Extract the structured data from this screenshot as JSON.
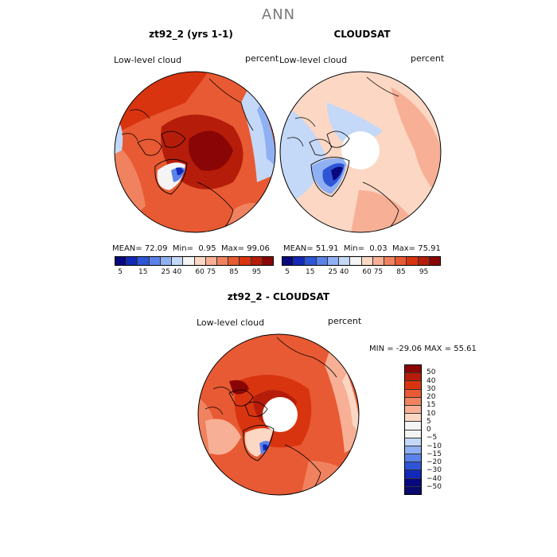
{
  "page": {
    "title": "ANN"
  },
  "panel1": {
    "title": "zt92_2 (yrs 1-1)",
    "field_label": "Low-level cloud",
    "units": "percent",
    "stats": {
      "mean_label": "MEAN=",
      "mean": "72.09",
      "min_label": "Min=",
      "min": "0.95",
      "max_label": "Max=",
      "max": "99.06"
    }
  },
  "panel2": {
    "title": "CLOUDSAT",
    "field_label": "Low-level cloud",
    "units": "percent",
    "stats": {
      "mean_label": "MEAN=",
      "mean": "51.91",
      "min_label": "Min=",
      "min": "0.03",
      "max_label": "Max=",
      "max": "75.91"
    }
  },
  "panel3": {
    "title": "zt92_2 - CLOUDSAT",
    "field_label": "Low-level cloud",
    "units": "percent",
    "minmax": "MIN = -29.06 MAX =  55.61"
  },
  "colors": {
    "abs_scale": [
      "#08087e",
      "#1228b8",
      "#2d55d6",
      "#5b82e8",
      "#8fb0f2",
      "#c4d8f8",
      "#f4f4f4",
      "#fbd7c4",
      "#f7b095",
      "#f0825f",
      "#e85a33",
      "#d93410",
      "#b51d0a",
      "#8a0505"
    ],
    "diff_scale": [
      "#8a0505",
      "#b51d0a",
      "#d93410",
      "#e85a33",
      "#f0825f",
      "#f7b095",
      "#fbd7c4",
      "#f4f4f4",
      "#f4f4f4",
      "#c4d8f8",
      "#8fb0f2",
      "#5b82e8",
      "#2d55d6",
      "#1228b8",
      "#08087e"
    ]
  },
  "chart_data": [
    {
      "type": "heatmap",
      "title": "zt92_2 (yrs 1-1)",
      "variable": "Low-level cloud",
      "units": "percent",
      "mean": 72.09,
      "min": 0.95,
      "max": 99.06,
      "colorbar_ticks": [
        "5",
        "15",
        "25",
        "40",
        "60",
        "75",
        "85",
        "95"
      ]
    },
    {
      "type": "heatmap",
      "title": "CLOUDSAT",
      "variable": "Low-level cloud",
      "units": "percent",
      "mean": 51.91,
      "min": 0.03,
      "max": 75.91,
      "colorbar_ticks": [
        "5",
        "15",
        "25",
        "40",
        "60",
        "75",
        "85",
        "95"
      ]
    },
    {
      "type": "heatmap",
      "title": "zt92_2 - CLOUDSAT",
      "variable": "Low-level cloud",
      "units": "percent",
      "min": -29.06,
      "max": 55.61,
      "colorbar_ticks": [
        "50",
        "40",
        "30",
        "20",
        "15",
        "10",
        "5",
        "0",
        "−5",
        "−10",
        "−15",
        "−20",
        "−30",
        "−40",
        "−50"
      ]
    }
  ]
}
